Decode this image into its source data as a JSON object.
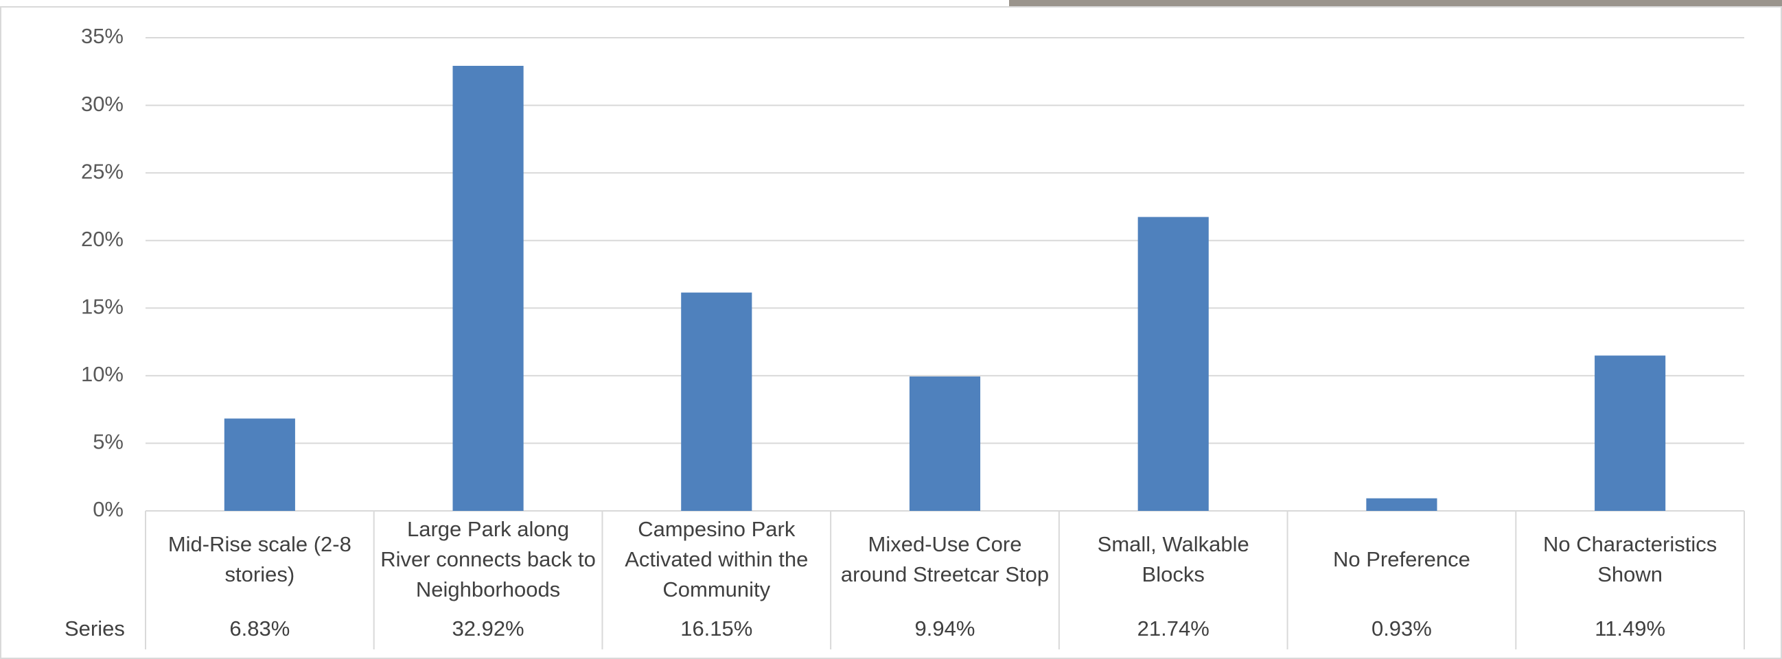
{
  "chart_data": {
    "type": "bar",
    "categories": [
      "Mid-Rise scale (2-8 stories)",
      "Large Park along River connects back to Neighborhoods",
      "Campesino Park Activated within the Community",
      "Mixed-Use Core around Streetcar Stop",
      "Small, Walkable Blocks",
      "No Preference",
      "No Characteristics Shown"
    ],
    "series": [
      {
        "name": "Series",
        "color": "#4f81bd",
        "values": [
          6.83,
          32.92,
          16.15,
          9.94,
          21.74,
          0.93,
          11.49
        ],
        "value_labels": [
          "6.83%",
          "32.92%",
          "16.15%",
          "9.94%",
          "21.74%",
          "0.93%",
          "11.49%"
        ]
      }
    ],
    "ylim": [
      0,
      35
    ],
    "yticks": [
      {
        "value": 0,
        "label": "0%"
      },
      {
        "value": 5,
        "label": "5%"
      },
      {
        "value": 10,
        "label": "10%"
      },
      {
        "value": 15,
        "label": "15%"
      },
      {
        "value": 20,
        "label": "20%"
      },
      {
        "value": 25,
        "label": "25%"
      },
      {
        "value": 30,
        "label": "30%"
      },
      {
        "value": 35,
        "label": "35%"
      }
    ],
    "grid": true
  }
}
